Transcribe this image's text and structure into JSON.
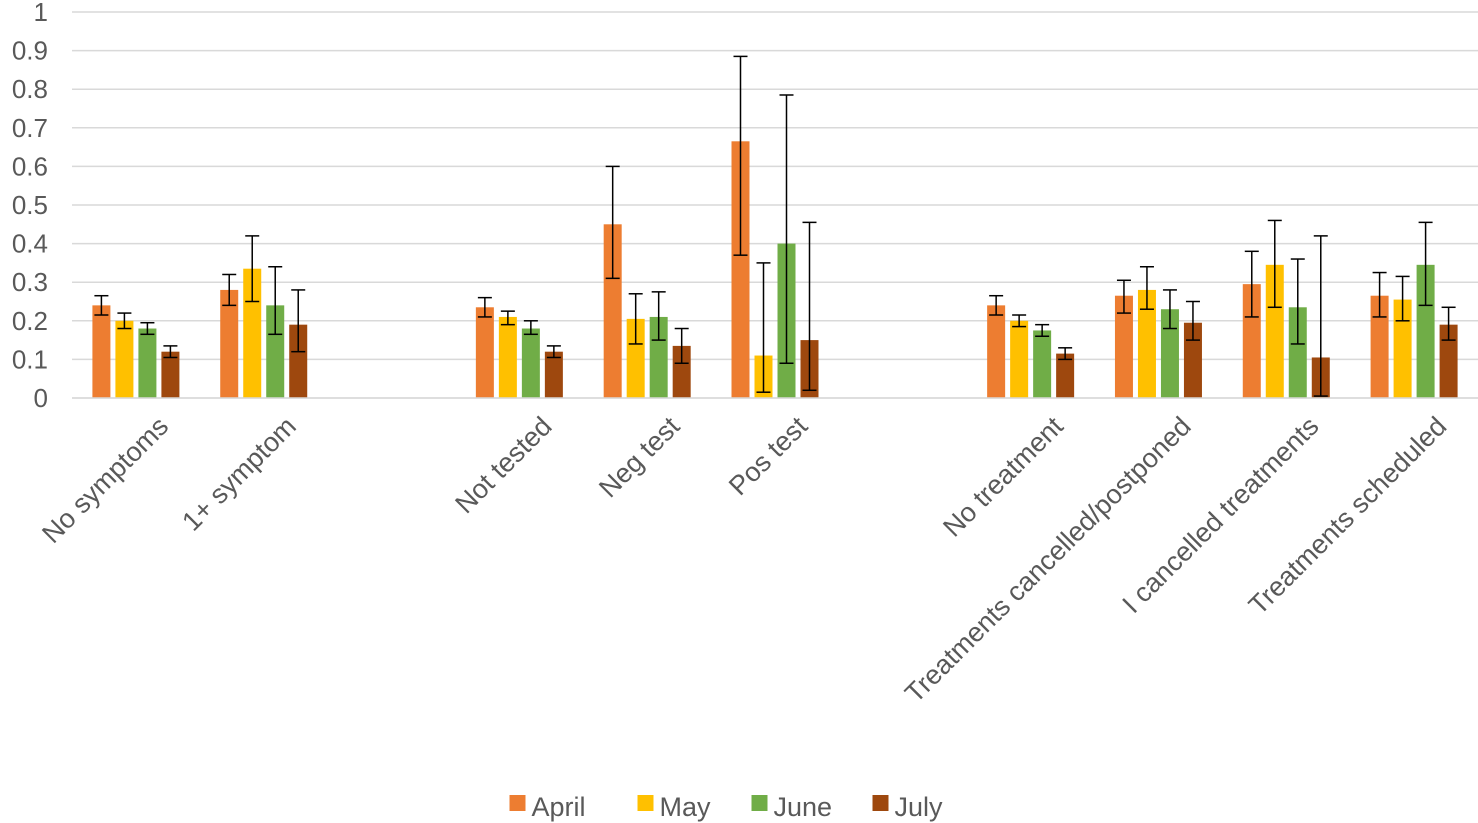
{
  "chart_data": {
    "type": "bar",
    "title": "",
    "xlabel": "",
    "ylabel": "",
    "ylim": [
      0,
      1
    ],
    "yticks": [
      "0",
      "0.1",
      "0.2",
      "0.3",
      "0.4",
      "0.5",
      "0.6",
      "0.7",
      "0.8",
      "0.9",
      "1"
    ],
    "grid": "horizontal",
    "legend_position": "bottom",
    "error_bars": true,
    "groups": [
      {
        "categories": [
          "No symptoms",
          "1+ symptom"
        ]
      },
      {
        "categories": [
          "Not tested",
          "Neg test",
          "Pos test"
        ]
      },
      {
        "categories": [
          "No treatment",
          "Treatments cancelled/postponed",
          "I cancelled treatments",
          "Treatments scheduled"
        ]
      }
    ],
    "categories": [
      "No symptoms",
      "1+ symptom",
      "Not tested",
      "Neg test",
      "Pos test",
      "No treatment",
      "Treatments cancelled/postponed",
      "I cancelled treatments",
      "Treatments scheduled"
    ],
    "series": [
      {
        "name": "April",
        "color": "#ED7D31",
        "values": [
          0.24,
          0.28,
          0.235,
          0.45,
          0.665,
          0.24,
          0.265,
          0.295,
          0.265
        ],
        "error_low": [
          0.215,
          0.24,
          0.21,
          0.31,
          0.37,
          0.215,
          0.22,
          0.21,
          0.21
        ],
        "error_high": [
          0.265,
          0.32,
          0.26,
          0.6,
          0.885,
          0.265,
          0.305,
          0.38,
          0.325
        ]
      },
      {
        "name": "May",
        "color": "#FFC000",
        "values": [
          0.2,
          0.335,
          0.21,
          0.205,
          0.11,
          0.2,
          0.28,
          0.345,
          0.255
        ],
        "error_low": [
          0.18,
          0.25,
          0.19,
          0.14,
          0.015,
          0.185,
          0.23,
          0.235,
          0.2
        ],
        "error_high": [
          0.22,
          0.42,
          0.225,
          0.27,
          0.35,
          0.215,
          0.34,
          0.46,
          0.315
        ]
      },
      {
        "name": "June",
        "color": "#70AD47",
        "values": [
          0.18,
          0.24,
          0.18,
          0.21,
          0.4,
          0.175,
          0.23,
          0.235,
          0.345
        ],
        "error_low": [
          0.165,
          0.165,
          0.165,
          0.15,
          0.09,
          0.16,
          0.18,
          0.14,
          0.24
        ],
        "error_high": [
          0.195,
          0.34,
          0.2,
          0.275,
          0.785,
          0.19,
          0.28,
          0.36,
          0.455
        ]
      },
      {
        "name": "July",
        "color": "#9E480E",
        "values": [
          0.12,
          0.19,
          0.12,
          0.135,
          0.15,
          0.115,
          0.195,
          0.105,
          0.19
        ],
        "error_low": [
          0.105,
          0.12,
          0.105,
          0.09,
          0.02,
          0.1,
          0.15,
          0.005,
          0.15
        ],
        "error_high": [
          0.135,
          0.28,
          0.135,
          0.18,
          0.455,
          0.13,
          0.25,
          0.42,
          0.235
        ]
      }
    ]
  }
}
